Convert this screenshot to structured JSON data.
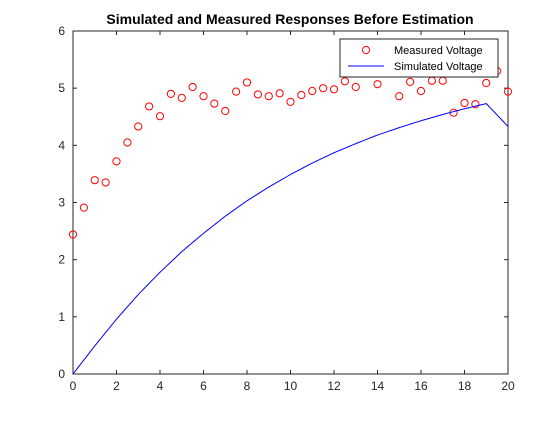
{
  "chart_data": {
    "type": "scatter+line",
    "title": "Simulated and Measured Responses Before Estimation",
    "xlabel": "",
    "ylabel": "",
    "xlim": [
      0,
      20
    ],
    "ylim": [
      0,
      6
    ],
    "xticks": [
      0,
      2,
      4,
      6,
      8,
      10,
      12,
      14,
      16,
      18,
      20
    ],
    "yticks": [
      0,
      1,
      2,
      3,
      4,
      5,
      6
    ],
    "grid": false,
    "legend_position": "top-right",
    "series": [
      {
        "name": "Measured Voltage",
        "kind": "scatter",
        "marker": "circle-open",
        "color": "#ff0000",
        "x": [
          0,
          0.5,
          1,
          1.5,
          2,
          2.5,
          3,
          3.5,
          4,
          4.5,
          5,
          5.5,
          6,
          6.5,
          7,
          7.5,
          8,
          8.5,
          9,
          9.5,
          10,
          10.5,
          11,
          11.5,
          12,
          12.5,
          13,
          14,
          15,
          15.5,
          16,
          16.5,
          17,
          17.5,
          18,
          18.5,
          19,
          19.5,
          20
        ],
        "y": [
          2.44,
          2.91,
          3.39,
          3.35,
          3.72,
          4.05,
          4.33,
          4.68,
          4.51,
          4.9,
          4.83,
          5.02,
          4.86,
          4.73,
          4.6,
          4.94,
          5.1,
          4.89,
          4.86,
          4.91,
          4.76,
          4.88,
          4.95,
          5.0,
          4.98,
          5.12,
          5.02,
          5.07,
          4.86,
          5.11,
          4.95,
          5.13,
          5.13,
          4.57,
          4.74,
          4.72,
          5.09,
          5.3,
          4.94
        ]
      },
      {
        "name": "Simulated Voltage",
        "kind": "line",
        "color": "#0000ff",
        "x": [
          0,
          1,
          2,
          3,
          4,
          5,
          6,
          7,
          8,
          9,
          10,
          11,
          12,
          13,
          14,
          15,
          16,
          17,
          18,
          19,
          20
        ],
        "y": [
          0,
          0.49,
          0.96,
          1.39,
          1.78,
          2.14,
          2.46,
          2.76,
          3.03,
          3.27,
          3.49,
          3.69,
          3.87,
          4.03,
          4.18,
          4.31,
          4.43,
          4.54,
          4.64,
          4.73,
          4.33
        ]
      }
    ]
  }
}
